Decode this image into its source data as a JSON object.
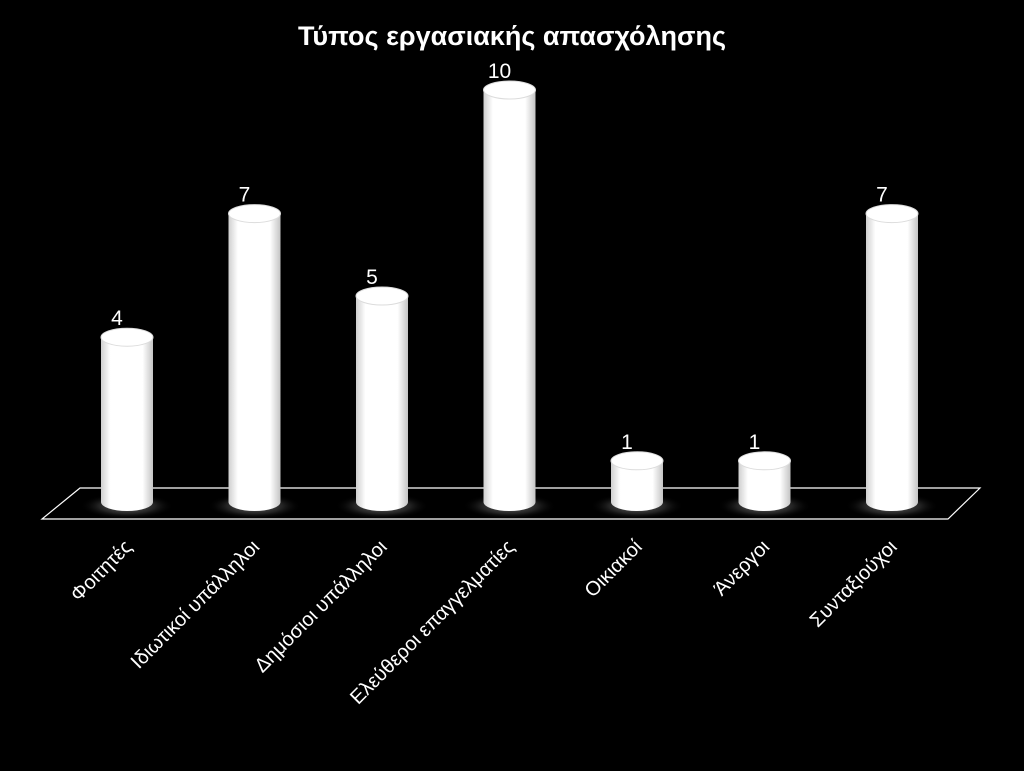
{
  "chart_data": {
    "type": "bar",
    "title": "Τύπος εργασιακής απασχόλησης",
    "categories": [
      "Φοιτητές",
      "Ιδιωτικοί υπάλληλοι",
      "Δημόσιοι υπάλληλοι",
      "Ελεύθεροι επαγγελματίες",
      "Οικιακοί",
      "Άνεργοι",
      "Συνταξιούχοι"
    ],
    "values": [
      4,
      7,
      5,
      10,
      1,
      1,
      7
    ],
    "ylim": [
      0,
      10
    ],
    "grid": false,
    "legend": "none",
    "data_labels": true,
    "style": "3d-cylinder"
  },
  "colors": {
    "background": "#000000",
    "bar": "#ffffff",
    "floor_edge": "#ffffff",
    "text": "#ffffff"
  }
}
